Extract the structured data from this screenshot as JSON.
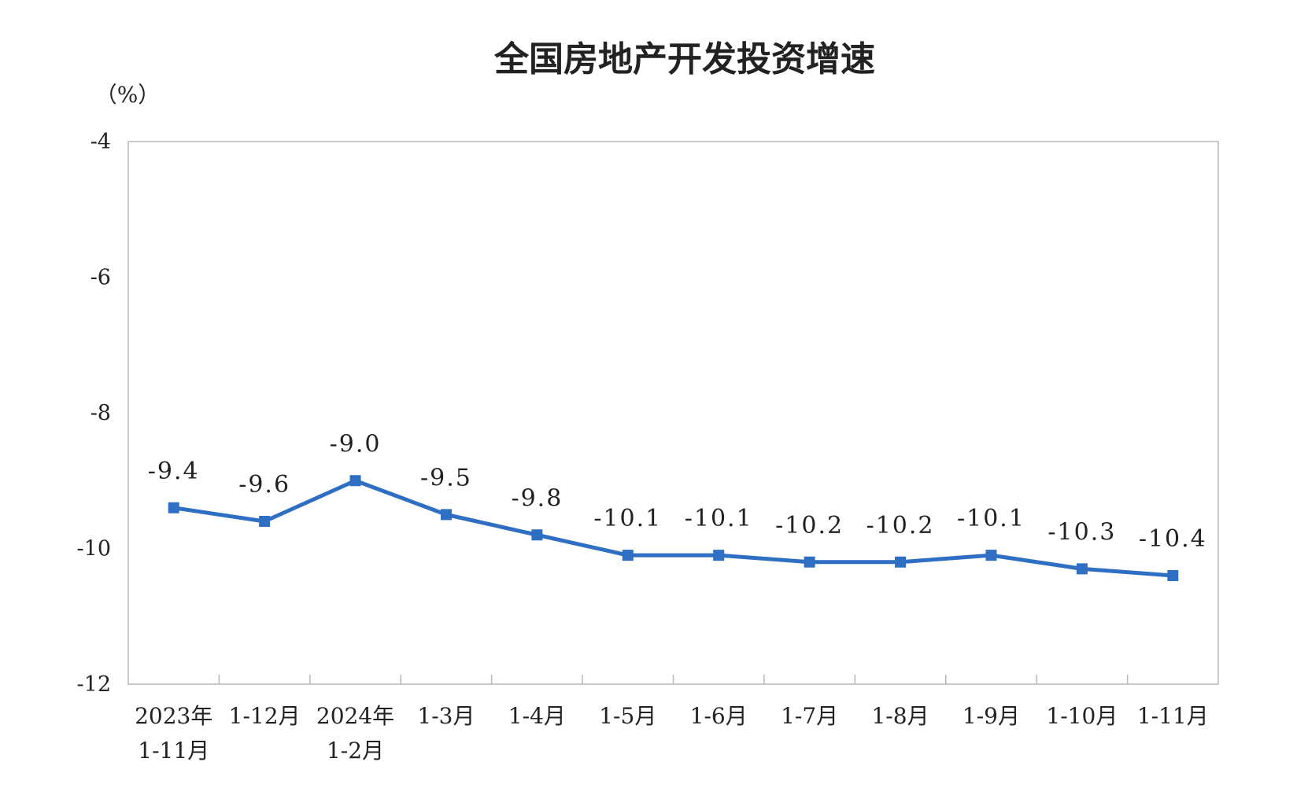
{
  "chart_data": {
    "type": "line",
    "title": "全国房地产开发投资增速",
    "ylabel": "（%）",
    "xlabel": "",
    "ylim": [
      -12,
      -4
    ],
    "yticks": [
      -4,
      -6,
      -8,
      -10,
      -12
    ],
    "ytick_labels": [
      "-4",
      "-6",
      "-8",
      "-10",
      "-12"
    ],
    "grid": false,
    "legend": "none",
    "categories": [
      [
        "2023年",
        "1-11月"
      ],
      [
        "1-12月"
      ],
      [
        "2024年",
        "1-2月"
      ],
      [
        "1-3月"
      ],
      [
        "1-4月"
      ],
      [
        "1-5月"
      ],
      [
        "1-6月"
      ],
      [
        "1-7月"
      ],
      [
        "1-8月"
      ],
      [
        "1-9月"
      ],
      [
        "1-10月"
      ],
      [
        "1-11月"
      ]
    ],
    "series": [
      {
        "values": [
          -9.4,
          -9.6,
          -9.0,
          -9.5,
          -9.8,
          -10.1,
          -10.1,
          -10.2,
          -10.2,
          -10.1,
          -10.3,
          -10.4
        ],
        "data_labels": [
          "-9.4",
          "-9.6",
          "-9.0",
          "-9.5",
          "-9.8",
          "-10.1",
          "-10.1",
          "-10.2",
          "-10.2",
          "-10.1",
          "-10.3",
          "-10.4"
        ],
        "color": "#2e6fc4",
        "marker": "square"
      }
    ]
  }
}
